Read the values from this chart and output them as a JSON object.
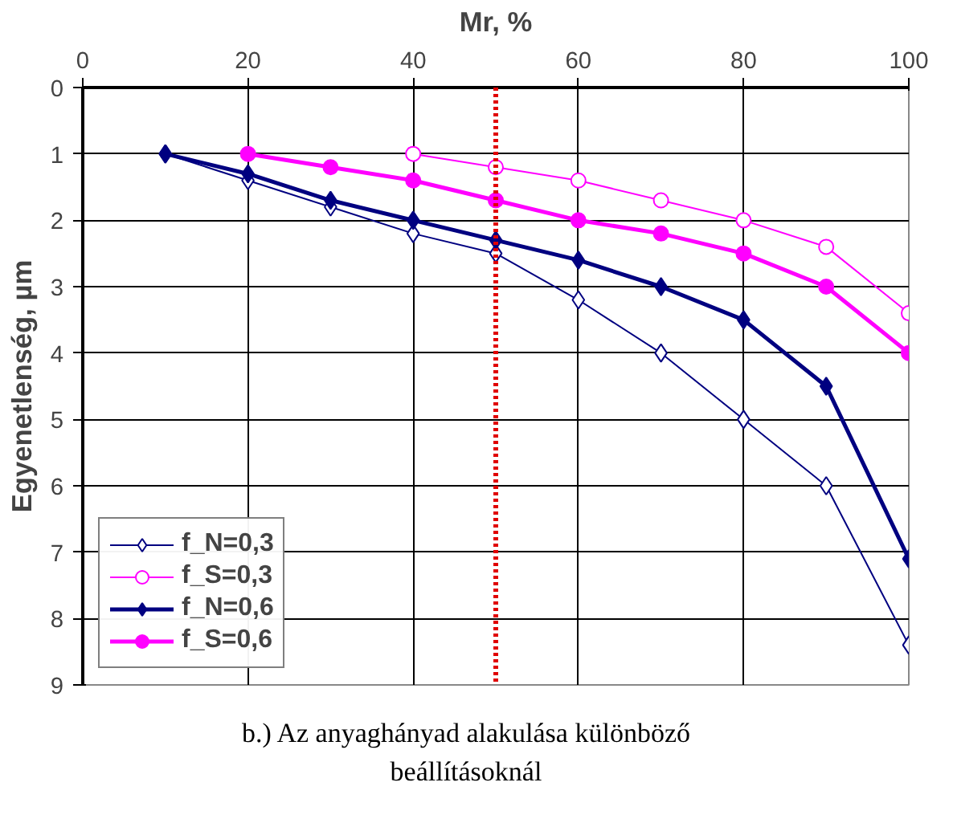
{
  "chart_data": {
    "type": "line",
    "xlabel": "Mr, %",
    "ylabel": "Egyenetlenség, µm",
    "x": [
      10,
      20,
      30,
      40,
      50,
      60,
      70,
      80,
      90,
      100
    ],
    "series": [
      {
        "name": "f_N=0,3",
        "color": "#000080",
        "marker": "diamond",
        "values": [
          1,
          1.4,
          1.8,
          2.2,
          2.5,
          3.2,
          4.0,
          5.0,
          6.0,
          8.4
        ]
      },
      {
        "name": "f_S=0,3",
        "color": "#ff00ff",
        "marker": "circle",
        "values": [
          null,
          null,
          null,
          1.0,
          1.2,
          1.4,
          1.7,
          2.0,
          2.4,
          3.4
        ]
      },
      {
        "name": "f_N=0,6",
        "color": "#000080",
        "marker": "diamond",
        "values": [
          1,
          1.3,
          1.7,
          2.0,
          2.3,
          2.6,
          3.0,
          3.5,
          4.5,
          7.1
        ]
      },
      {
        "name": "f_S=0,6",
        "color": "#ff00ff",
        "marker": "circle",
        "values": [
          null,
          1.0,
          1.2,
          1.4,
          1.7,
          2.0,
          2.2,
          2.5,
          3.0,
          4.0
        ]
      }
    ],
    "xlim": [
      0,
      100
    ],
    "xticks": [
      0,
      20,
      40,
      60,
      80,
      100
    ],
    "ylim": [
      9,
      0
    ],
    "yticks": [
      0,
      1,
      2,
      3,
      4,
      5,
      6,
      7,
      8,
      9
    ],
    "grid": true,
    "legend": "bottom left",
    "ref_lines": [
      {
        "axis": "x",
        "value": 50,
        "color": "#e00000",
        "line_style": "dotted"
      }
    ],
    "annotations": [
      "b.) Az anyaghányad alakulása különböző beállításoknál"
    ]
  }
}
